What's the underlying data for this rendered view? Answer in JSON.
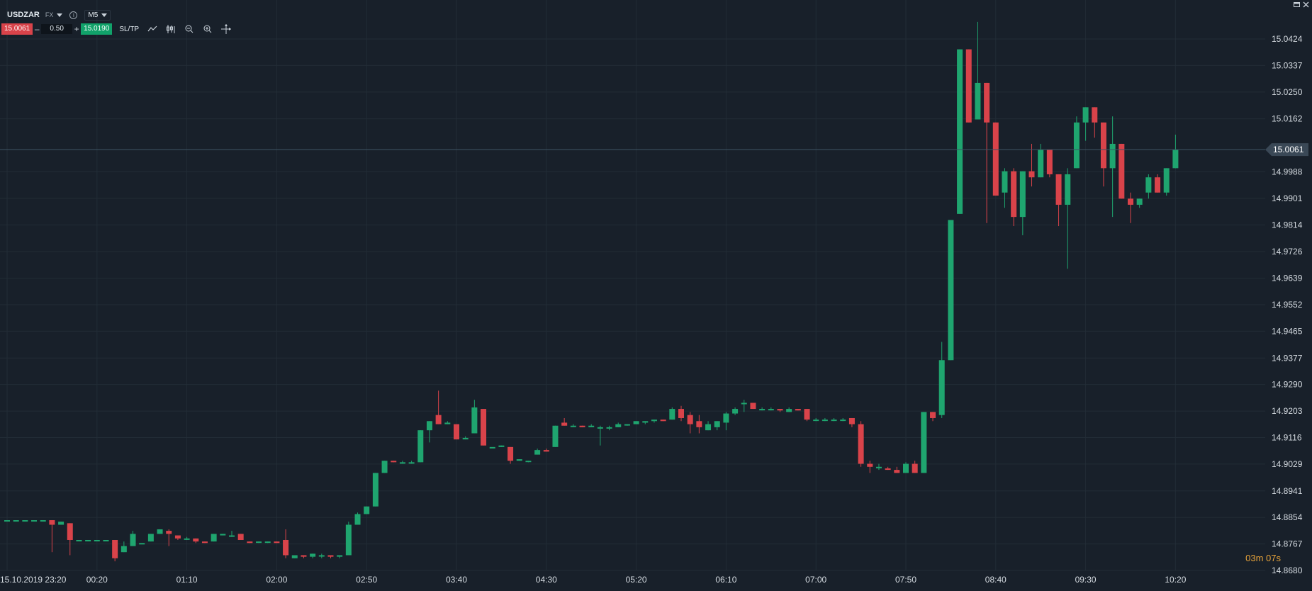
{
  "header": {
    "symbol": "USDZAR",
    "market": "FX",
    "timeframe": "M5"
  },
  "trade": {
    "sell_price": "15.0061",
    "minus": "–",
    "lot": "0.50",
    "plus": "+",
    "buy_price": "15.0190",
    "sltp_label": "SL/TP"
  },
  "countdown": "03m 07s",
  "colors": {
    "background": "#18202a",
    "up": "#1fa56f",
    "down": "#d9434a",
    "grid": "#222c36",
    "countdown": "#e7a33a"
  },
  "icons": [
    "caret-down-icon",
    "info-icon",
    "line-chart-icon",
    "candles-icon",
    "zoom-out-icon",
    "zoom-in-icon",
    "crosshair-icon",
    "minimize-icon",
    "close-icon"
  ],
  "chart_data": {
    "type": "candlestick",
    "y_ticks": [
      "15.0424",
      "15.0337",
      "15.0250",
      "15.0162",
      "14.9988",
      "14.9901",
      "14.9814",
      "14.9726",
      "14.9639",
      "14.9552",
      "14.9465",
      "14.9377",
      "14.9290",
      "14.9203",
      "14.9116",
      "14.9029",
      "14.8941",
      "14.8854",
      "14.8767",
      "14.8680"
    ],
    "ylim": [
      14.868,
      15.0424
    ],
    "x_ticks": [
      "15.10.2019 23:20",
      "00:20",
      "01:10",
      "02:00",
      "02:50",
      "03:40",
      "04:30",
      "05:20",
      "06:10",
      "07:00",
      "07:50",
      "08:40",
      "09:30",
      "10:20"
    ],
    "current_price": "15.0061",
    "candles": [
      [
        14.8845,
        14.8845,
        14.8845,
        14.8845
      ],
      [
        14.8845,
        14.8845,
        14.8845,
        14.8845
      ],
      [
        14.8845,
        14.8845,
        14.8845,
        14.8845
      ],
      [
        14.8845,
        14.8845,
        14.8845,
        14.8845
      ],
      [
        14.8845,
        14.8845,
        14.8845,
        14.8845
      ],
      [
        14.8845,
        14.8845,
        14.874,
        14.883
      ],
      [
        14.883,
        14.884,
        14.883,
        14.884
      ],
      [
        14.8835,
        14.8835,
        14.873,
        14.878
      ],
      [
        14.878,
        14.878,
        14.878,
        14.878
      ],
      [
        14.878,
        14.878,
        14.878,
        14.878
      ],
      [
        14.878,
        14.878,
        14.878,
        14.878
      ],
      [
        14.878,
        14.878,
        14.878,
        14.878
      ],
      [
        14.878,
        14.878,
        14.871,
        14.872
      ],
      [
        14.874,
        14.8775,
        14.874,
        14.876
      ],
      [
        14.876,
        14.881,
        14.876,
        14.88
      ],
      [
        14.877,
        14.877,
        14.877,
        14.877
      ],
      [
        14.8775,
        14.88,
        14.8775,
        14.88
      ],
      [
        14.88,
        14.8815,
        14.88,
        14.8815
      ],
      [
        14.881,
        14.8815,
        14.876,
        14.88
      ],
      [
        14.8795,
        14.8795,
        14.878,
        14.8785
      ],
      [
        14.8785,
        14.879,
        14.878,
        14.8785
      ],
      [
        14.8785,
        14.8785,
        14.877,
        14.8775
      ],
      [
        14.8775,
        14.8775,
        14.877,
        14.877
      ],
      [
        14.8775,
        14.88,
        14.8775,
        14.88
      ],
      [
        14.8795,
        14.88,
        14.8795,
        14.88
      ],
      [
        14.8795,
        14.881,
        14.879,
        14.8795
      ],
      [
        14.88,
        14.88,
        14.878,
        14.878
      ],
      [
        14.8775,
        14.8775,
        14.877,
        14.877
      ],
      [
        14.8775,
        14.8775,
        14.877,
        14.8775
      ],
      [
        14.8775,
        14.8775,
        14.877,
        14.8775
      ],
      [
        14.8775,
        14.8775,
        14.877,
        14.877
      ],
      [
        14.878,
        14.8815,
        14.872,
        14.873
      ],
      [
        14.872,
        14.873,
        14.872,
        14.873
      ],
      [
        14.873,
        14.873,
        14.872,
        14.8725
      ],
      [
        14.8725,
        14.8735,
        14.872,
        14.8735
      ],
      [
        14.873,
        14.8735,
        14.872,
        14.873
      ],
      [
        14.873,
        14.873,
        14.872,
        14.8725
      ],
      [
        14.8725,
        14.873,
        14.872,
        14.873
      ],
      [
        14.873,
        14.884,
        14.873,
        14.883
      ],
      [
        14.883,
        14.887,
        14.883,
        14.8865
      ],
      [
        14.8865,
        14.889,
        14.8865,
        14.889
      ],
      [
        14.889,
        14.9,
        14.889,
        14.9
      ],
      [
        14.9,
        14.904,
        14.9,
        14.904
      ],
      [
        14.904,
        14.904,
        14.9035,
        14.9035
      ],
      [
        14.9035,
        14.904,
        14.903,
        14.9035
      ],
      [
        14.9035,
        14.904,
        14.903,
        14.9035
      ],
      [
        14.9035,
        14.914,
        14.9035,
        14.914
      ],
      [
        14.914,
        14.917,
        14.91,
        14.917
      ],
      [
        14.919,
        14.927,
        14.916,
        14.916
      ],
      [
        14.916,
        14.917,
        14.916,
        14.9165
      ],
      [
        14.916,
        14.916,
        14.911,
        14.911
      ],
      [
        14.911,
        14.912,
        14.911,
        14.9115
      ],
      [
        14.913,
        14.924,
        14.913,
        14.9215
      ],
      [
        14.921,
        14.921,
        14.909,
        14.909
      ],
      [
        14.9085,
        14.9085,
        14.9085,
        14.9085
      ],
      [
        14.9085,
        14.909,
        14.9085,
        14.909
      ],
      [
        14.9085,
        14.9085,
        14.903,
        14.904
      ],
      [
        14.904,
        14.9045,
        14.904,
        14.9045
      ],
      [
        14.904,
        14.904,
        14.9035,
        14.904
      ],
      [
        14.906,
        14.908,
        14.906,
        14.9075
      ],
      [
        14.9075,
        14.908,
        14.907,
        14.907
      ],
      [
        14.9085,
        14.9155,
        14.9085,
        14.9155
      ],
      [
        14.9165,
        14.918,
        14.9155,
        14.9155
      ],
      [
        14.9155,
        14.916,
        14.915,
        14.9155
      ],
      [
        14.9155,
        14.9155,
        14.915,
        14.915
      ],
      [
        14.915,
        14.916,
        14.915,
        14.9155
      ],
      [
        14.915,
        14.9155,
        14.909,
        14.915
      ],
      [
        14.915,
        14.9155,
        14.914,
        14.915
      ],
      [
        14.915,
        14.9165,
        14.915,
        14.916
      ],
      [
        14.916,
        14.916,
        14.9155,
        14.916
      ],
      [
        14.916,
        14.917,
        14.916,
        14.917
      ],
      [
        14.9165,
        14.917,
        14.916,
        14.917
      ],
      [
        14.917,
        14.9175,
        14.9165,
        14.9175
      ],
      [
        14.9175,
        14.9175,
        14.917,
        14.917
      ],
      [
        14.9175,
        14.9215,
        14.9175,
        14.921
      ],
      [
        14.921,
        14.922,
        14.917,
        14.918
      ],
      [
        14.919,
        14.92,
        14.913,
        14.916
      ],
      [
        14.917,
        14.919,
        14.913,
        14.915
      ],
      [
        14.914,
        14.917,
        14.914,
        14.916
      ],
      [
        14.915,
        14.917,
        14.914,
        14.917
      ],
      [
        14.9165,
        14.92,
        14.914,
        14.9195
      ],
      [
        14.9195,
        14.9215,
        14.919,
        14.921
      ],
      [
        14.923,
        14.924,
        14.92,
        14.923
      ],
      [
        14.923,
        14.923,
        14.921,
        14.921
      ],
      [
        14.921,
        14.9215,
        14.9205,
        14.921
      ],
      [
        14.921,
        14.9215,
        14.9205,
        14.921
      ],
      [
        14.921,
        14.921,
        14.92,
        14.9205
      ],
      [
        14.92,
        14.9215,
        14.92,
        14.921
      ],
      [
        14.921,
        14.921,
        14.9205,
        14.9205
      ],
      [
        14.921,
        14.921,
        14.917,
        14.9175
      ],
      [
        14.9175,
        14.918,
        14.917,
        14.9175
      ],
      [
        14.9175,
        14.918,
        14.917,
        14.9175
      ],
      [
        14.9175,
        14.918,
        14.917,
        14.9175
      ],
      [
        14.9175,
        14.918,
        14.917,
        14.9175
      ],
      [
        14.918,
        14.918,
        14.915,
        14.916
      ],
      [
        14.916,
        14.917,
        14.902,
        14.903
      ],
      [
        14.903,
        14.904,
        14.9,
        14.902
      ],
      [
        14.902,
        14.903,
        14.901,
        14.902
      ],
      [
        14.9015,
        14.902,
        14.901,
        14.901
      ],
      [
        14.901,
        14.902,
        14.9,
        14.9
      ],
      [
        14.9,
        14.9035,
        14.9,
        14.903
      ],
      [
        14.903,
        14.904,
        14.9,
        14.9
      ],
      [
        14.9,
        14.92,
        14.9,
        14.92
      ],
      [
        14.92,
        14.92,
        14.917,
        14.918
      ],
      [
        14.919,
        14.943,
        14.918,
        14.937
      ],
      [
        14.937,
        14.983,
        14.937,
        14.983
      ],
      [
        14.985,
        15.039,
        14.985,
        15.039
      ],
      [
        15.039,
        15.039,
        15.015,
        15.015
      ],
      [
        15.016,
        15.048,
        15.016,
        15.028
      ],
      [
        15.028,
        15.028,
        14.982,
        15.015
      ],
      [
        15.015,
        15.015,
        14.991,
        14.991
      ],
      [
        14.992,
        15.0,
        14.987,
        14.999
      ],
      [
        14.999,
        15.0,
        14.981,
        14.984
      ],
      [
        14.984,
        14.999,
        14.978,
        14.999
      ],
      [
        14.999,
        15.008,
        14.994,
        14.997
      ],
      [
        14.997,
        15.008,
        14.997,
        15.006
      ],
      [
        15.006,
        15.006,
        14.997,
        14.998
      ],
      [
        14.998,
        14.998,
        14.981,
        14.988
      ],
      [
        14.988,
        15.0,
        14.967,
        14.998
      ],
      [
        15.0,
        15.017,
        15.0,
        15.015
      ],
      [
        15.015,
        15.02,
        15.009,
        15.02
      ],
      [
        15.02,
        15.02,
        15.01,
        15.015
      ],
      [
        15.015,
        15.015,
        14.994,
        15.0
      ],
      [
        15.0,
        15.017,
        14.984,
        15.008
      ],
      [
        15.008,
        15.008,
        14.99,
        14.99
      ],
      [
        14.99,
        14.992,
        14.982,
        14.988
      ],
      [
        14.988,
        14.99,
        14.987,
        14.99
      ],
      [
        14.992,
        14.998,
        14.99,
        14.997
      ],
      [
        14.997,
        14.998,
        14.992,
        14.992
      ],
      [
        14.992,
        15.0,
        14.991,
        15.0
      ],
      [
        15.0,
        15.011,
        15.0,
        15.006
      ]
    ]
  }
}
